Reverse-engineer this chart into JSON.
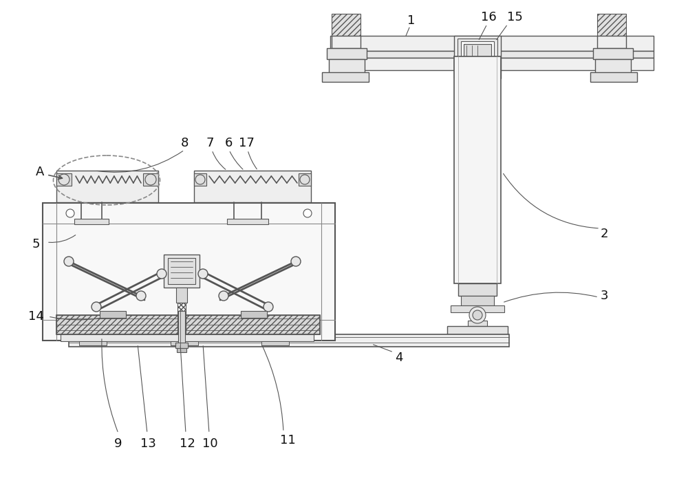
{
  "bg_color": "#ffffff",
  "line_color": "#555555",
  "label_color": "#111111",
  "figsize": [
    10.0,
    7.21
  ],
  "dpi": 100
}
